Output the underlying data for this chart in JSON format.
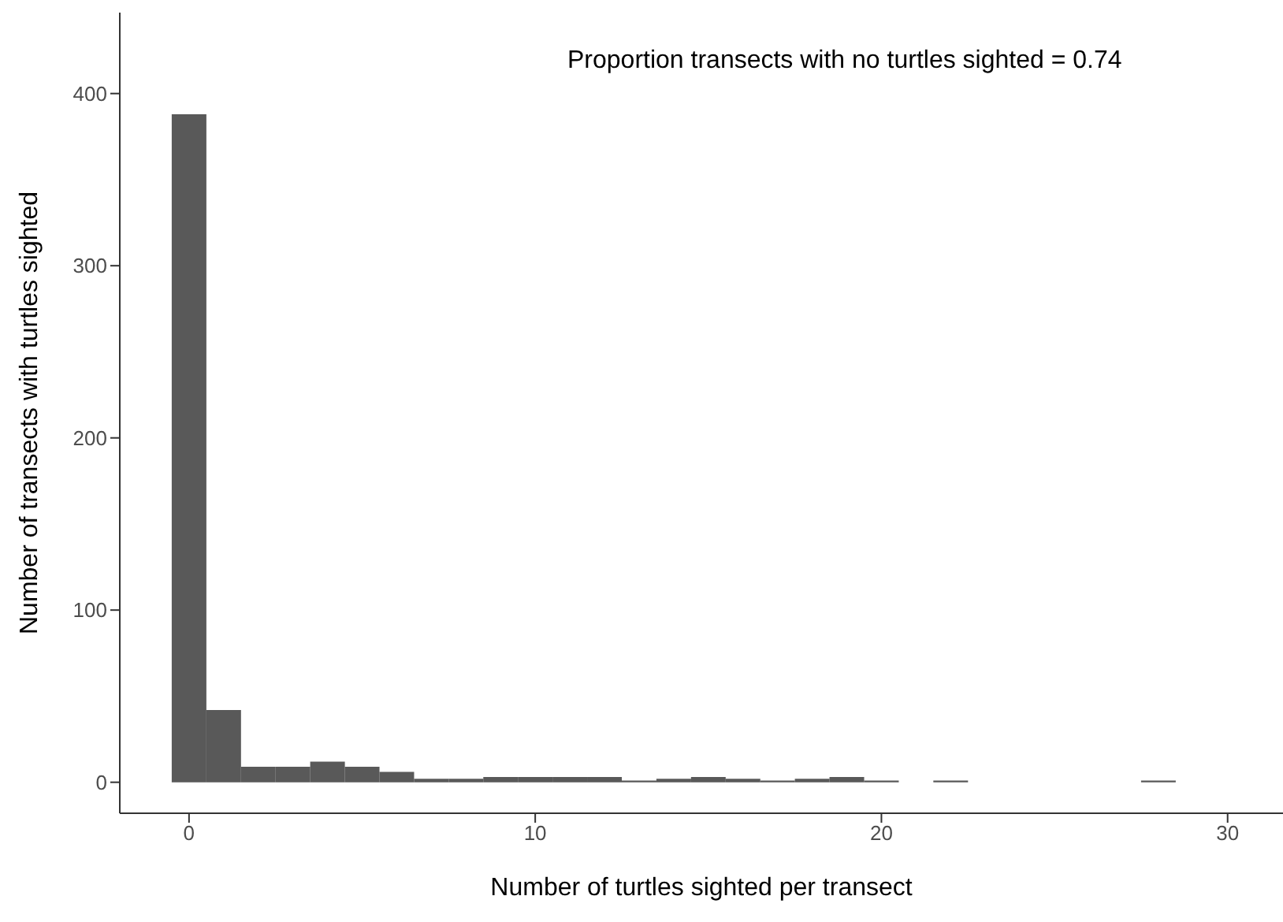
{
  "chart_data": {
    "type": "histogram",
    "xlabel": "Number of turtles sighted per transect",
    "ylabel": "Number of transects with turtles sighted",
    "annotations": [
      "Proportion transects with no turtles sighted = 0.74"
    ],
    "bins": [
      -0.5,
      0.5,
      1.5,
      2.5,
      3.5,
      4.5,
      5.5,
      6.5,
      7.5,
      8.5,
      9.5,
      10.5,
      11.5,
      12.5,
      13.5,
      14.5,
      15.5,
      16.5,
      17.5,
      18.5,
      19.5,
      20.5,
      21.5,
      22.5,
      23.5,
      24.5,
      25.5,
      26.5,
      27.5,
      28.5
    ],
    "values": [
      388,
      42,
      9,
      9,
      12,
      9,
      6,
      2,
      2,
      3,
      3,
      3,
      3,
      1,
      2,
      3,
      2,
      1,
      2,
      3,
      1,
      0,
      1,
      0,
      0,
      0,
      0,
      0,
      1
    ],
    "color": "#595959",
    "xlim": [
      -2,
      31.6
    ],
    "ylim": [
      -18,
      447
    ],
    "xticks": [
      0,
      10,
      20,
      30
    ],
    "yticks": [
      0,
      100,
      200,
      300,
      400
    ]
  }
}
